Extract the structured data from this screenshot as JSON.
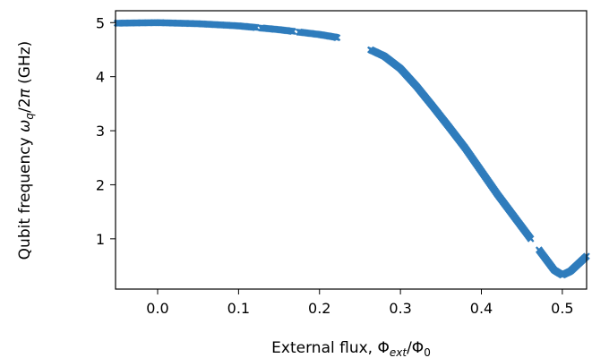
{
  "chart_data": {
    "type": "scatter",
    "marker": "x",
    "color": "#2f7cbc",
    "xlabel": {
      "prefix": "External flux, ",
      "phi": "Φ",
      "ext": "ext",
      "slash": "/",
      "zero": "0"
    },
    "ylabel": {
      "prefix": "Qubit frequency ",
      "omega": "ω",
      "q": "q",
      "rest": "/2",
      "pi": "π",
      "unit": " (GHz)"
    },
    "xlim": [
      -0.052,
      0.53
    ],
    "ylim": [
      0.07,
      5.22
    ],
    "xticks": [
      0.0,
      0.1,
      0.2,
      0.3,
      0.4,
      0.5
    ],
    "xtick_labels": [
      "0.0",
      "0.1",
      "0.2",
      "0.3",
      "0.4",
      "0.5"
    ],
    "yticks": [
      1,
      2,
      3,
      4,
      5
    ],
    "ytick_labels": [
      "1",
      "2",
      "3",
      "4",
      "5"
    ],
    "grid": false,
    "legend": "none",
    "curve": {
      "x": [
        -0.05,
        0.0,
        0.05,
        0.1,
        0.15,
        0.2,
        0.22,
        0.26,
        0.28,
        0.3,
        0.32,
        0.34,
        0.36,
        0.38,
        0.4,
        0.42,
        0.44,
        0.46,
        0.47,
        0.48,
        0.49,
        0.5,
        0.51,
        0.52,
        0.53
      ],
      "y": [
        4.99,
        5.0,
        4.98,
        4.94,
        4.87,
        4.78,
        4.73,
        4.52,
        4.38,
        4.15,
        3.82,
        3.45,
        3.07,
        2.68,
        2.25,
        1.82,
        1.42,
        1.02,
        0.82,
        0.62,
        0.42,
        0.33,
        0.4,
        0.54,
        0.68
      ]
    },
    "gaps": [
      [
        0.122,
        0.128
      ],
      [
        0.168,
        0.174
      ],
      [
        0.222,
        0.262
      ],
      [
        0.461,
        0.471
      ]
    ],
    "sample_step": 0.0013
  }
}
